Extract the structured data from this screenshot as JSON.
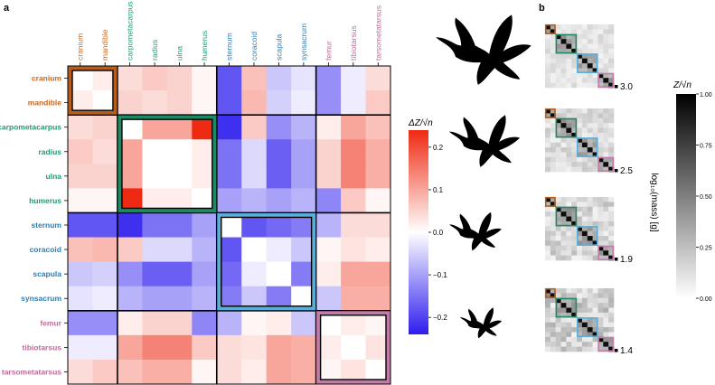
{
  "panels": {
    "a": "a",
    "b": "b"
  },
  "chart_data": [
    {
      "type": "heatmap",
      "id": "main-correlation-heatmap",
      "labels": [
        "cranium",
        "mandible",
        "carpometacarpus",
        "radius",
        "ulna",
        "humerus",
        "sternum",
        "coracoid",
        "scapula",
        "synsacrum",
        "femur",
        "tibiotarsus",
        "tarsometatarsus"
      ],
      "label_groups": [
        "skull",
        "skull",
        "wing",
        "wing",
        "wing",
        "wing",
        "thorax",
        "thorax",
        "thorax",
        "thorax",
        "leg",
        "leg",
        "leg"
      ],
      "group_colors": {
        "skull": "#c8671f",
        "wing": "#1f9a72",
        "thorax": "#2b7fb3",
        "leg": "#c0699b"
      },
      "module_box_colors": {
        "skull": "#b45f1e",
        "wing": "#1e8a63",
        "thorax": "#5aaed8",
        "leg": "#c27ba8"
      },
      "blocks": [
        [
          0,
          2
        ],
        [
          2,
          6
        ],
        [
          6,
          10
        ],
        [
          10,
          13
        ]
      ],
      "values": [
        [
          0,
          0.02,
          0.04,
          0.06,
          0.05,
          0.01,
          -0.18,
          0.07,
          -0.06,
          -0.03,
          -0.12,
          -0.02,
          0.04
        ],
        [
          0.02,
          0,
          0.05,
          0.04,
          0.05,
          0.01,
          -0.18,
          0.08,
          -0.05,
          -0.02,
          -0.12,
          -0.02,
          0.06
        ],
        [
          0.04,
          0.05,
          0,
          0.1,
          0.1,
          0.24,
          -0.22,
          0.06,
          -0.12,
          -0.08,
          0.02,
          0.1,
          0.07
        ],
        [
          0.06,
          0.04,
          0.1,
          0,
          0,
          0.02,
          -0.15,
          -0.04,
          -0.17,
          -0.1,
          0.05,
          0.14,
          0.09
        ],
        [
          0.05,
          0.05,
          0.1,
          0,
          0,
          0.02,
          -0.15,
          -0.04,
          -0.17,
          -0.1,
          0.05,
          0.14,
          0.09
        ],
        [
          0.01,
          0.01,
          0.24,
          0.02,
          0.02,
          0,
          -0.1,
          -0.08,
          -0.1,
          -0.08,
          -0.13,
          0.06,
          0.01
        ],
        [
          -0.18,
          -0.18,
          -0.22,
          -0.15,
          -0.15,
          -0.1,
          0,
          -0.18,
          -0.16,
          -0.14,
          -0.08,
          0.04,
          0.04
        ],
        [
          0.07,
          0.08,
          0.06,
          -0.04,
          -0.04,
          -0.08,
          -0.18,
          0,
          -0.02,
          -0.06,
          0.01,
          0.03,
          0.02
        ],
        [
          -0.06,
          -0.05,
          -0.12,
          -0.17,
          -0.17,
          -0.1,
          -0.16,
          -0.02,
          0,
          -0.14,
          0.02,
          0.1,
          0.1
        ],
        [
          -0.03,
          -0.02,
          -0.08,
          -0.1,
          -0.1,
          -0.08,
          -0.14,
          -0.06,
          -0.14,
          0,
          -0.06,
          0.09,
          0.09
        ],
        [
          -0.12,
          -0.12,
          0.02,
          0.05,
          0.05,
          -0.13,
          -0.08,
          0.01,
          0.02,
          -0.06,
          0,
          0.02,
          0.01
        ],
        [
          -0.02,
          -0.02,
          0.1,
          0.14,
          0.14,
          0.06,
          0.04,
          0.03,
          0.1,
          0.09,
          0.02,
          0,
          0.03
        ],
        [
          0.04,
          0.06,
          0.07,
          0.09,
          0.09,
          0.01,
          0.04,
          0.02,
          0.1,
          0.09,
          0.01,
          0.03,
          0
        ]
      ],
      "colorbar": {
        "title": "ΔZ/√n",
        "range": [
          -0.24,
          0.24
        ],
        "ticks": [
          0.2,
          0.1,
          0.0,
          -0.1,
          -0.2
        ],
        "tick_labels": [
          "0.2",
          "0.1",
          "0.0",
          "−0.1",
          "−0.2"
        ],
        "low_color": "#2e1dee",
        "mid_color": "#ffffff",
        "high_color": "#ee2a12"
      }
    },
    {
      "type": "heatmap",
      "id": "mass-series-heatmaps",
      "grid_size": 13,
      "blocks": [
        [
          0,
          2
        ],
        [
          2,
          6
        ],
        [
          6,
          10
        ],
        [
          10,
          13
        ]
      ],
      "module_box_colors": [
        "#b45f1e",
        "#1e8a63",
        "#5aaed8",
        "#c27ba8"
      ],
      "thumbnails": [
        {
          "mass_label": "3.0"
        },
        {
          "mass_label": "2.5"
        },
        {
          "mass_label": "1.9"
        },
        {
          "mass_label": "1.4"
        }
      ],
      "ylabel": "log₁₀(mass) [g]",
      "colorbar": {
        "title": "Z/√n",
        "range": [
          0,
          1
        ],
        "ticks": [
          1.0,
          0.75,
          0.5,
          0.25,
          0.0
        ],
        "tick_labels": [
          "1.00",
          "0.75",
          "0.50",
          "0.25",
          "0.00"
        ],
        "low_color": "#ffffff",
        "high_color": "#000000"
      }
    }
  ],
  "silhouettes": [
    {
      "name": "bird-silhouette-large"
    },
    {
      "name": "bird-silhouette-medium"
    },
    {
      "name": "bird-silhouette-small"
    },
    {
      "name": "bird-silhouette-smallest"
    }
  ]
}
